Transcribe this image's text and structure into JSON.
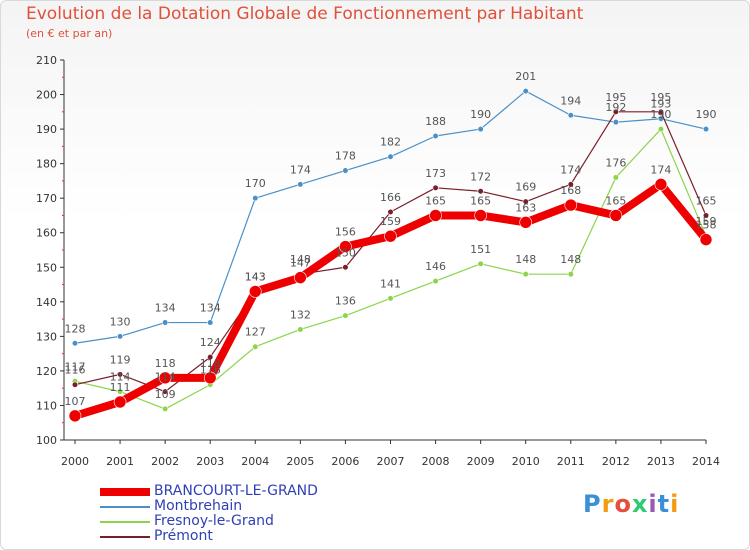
{
  "header": {
    "title": "Evolution de la Dotation Globale de Fonctionnement par Habitant",
    "subtitle": "(en € et par an)"
  },
  "logo": {
    "text": "Proxiti",
    "colors": [
      "#3a8fd6",
      "#f39c12",
      "#e74c3c",
      "#2ecc71",
      "#9b59b6"
    ]
  },
  "chart_data": {
    "type": "line",
    "title": "Evolution de la Dotation Globale de Fonctionnement par Habitant",
    "subtitle": "(en € et par an)",
    "x": [
      "2000",
      "2001",
      "2002",
      "2003",
      "2004",
      "2005",
      "2006",
      "2007",
      "2008",
      "2009",
      "2010",
      "2011",
      "2012",
      "2013",
      "2014"
    ],
    "ylim": [
      100,
      210
    ],
    "yticks": [
      100,
      110,
      120,
      130,
      140,
      150,
      160,
      170,
      180,
      190,
      200,
      210
    ],
    "grid": false,
    "legend_position": "bottom-left",
    "series": [
      {
        "name": "Montbrehain",
        "color": "#4a90c8",
        "width": 1.2,
        "marker": 2.8,
        "values": [
          128,
          130,
          134,
          134,
          170,
          174,
          178,
          182,
          188,
          190,
          201,
          194,
          192,
          193,
          190
        ]
      },
      {
        "name": "Fresnoy-le-Grand",
        "color": "#8cd44a",
        "width": 1.2,
        "marker": 2.8,
        "values": [
          117,
          114,
          109,
          116,
          127,
          132,
          136,
          141,
          146,
          151,
          148,
          148,
          176,
          190,
          159
        ]
      },
      {
        "name": "Prémont",
        "color": "#7a1f2a",
        "width": 1.2,
        "marker": 2.8,
        "values": [
          116,
          119,
          114,
          124,
          143,
          148,
          150,
          166,
          173,
          172,
          169,
          174,
          195,
          195,
          165
        ]
      },
      {
        "name": "BRANCOURT-LE-GRAND",
        "color": "#ee0000",
        "width": 8,
        "marker": 6,
        "values": [
          107,
          111,
          118,
          118,
          143,
          147,
          156,
          159,
          165,
          165,
          163,
          168,
          165,
          174,
          158
        ]
      }
    ],
    "legend_order": [
      "BRANCOURT-LE-GRAND",
      "Montbrehain",
      "Fresnoy-le-Grand",
      "Prémont"
    ]
  }
}
